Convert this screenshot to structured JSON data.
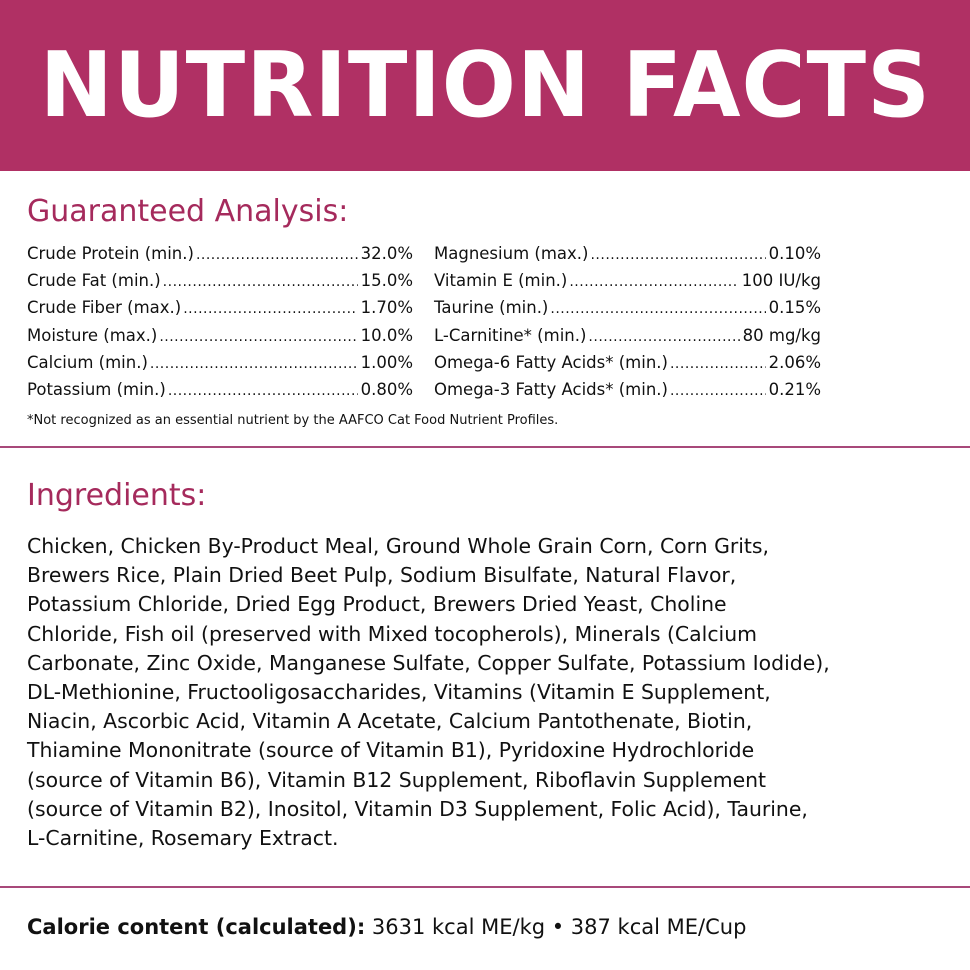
{
  "header": {
    "title": "NUTRITION FACTS"
  },
  "guaranteed_analysis": {
    "title": "Guaranteed Analysis:",
    "left": [
      {
        "name": "Crude Protein (min.)",
        "value": "32.0%"
      },
      {
        "name": "Crude Fat (min.)",
        "value": "15.0%"
      },
      {
        "name": "Crude Fiber (max.)",
        "value": "1.70%"
      },
      {
        "name": "Moisture (max.)",
        "value": "10.0%"
      },
      {
        "name": "Calcium (min.)",
        "value": "1.00%"
      },
      {
        "name": "Potassium (min.)",
        "value": "0.80%"
      }
    ],
    "right": [
      {
        "name": "Magnesium (max.)",
        "value": "0.10%"
      },
      {
        "name": "Vitamin E (min.)",
        "value": "100 IU/kg"
      },
      {
        "name": "Taurine (min.)",
        "value": "0.15%"
      },
      {
        "name": "L-Carnitine* (min.)",
        "value": "80 mg/kg"
      },
      {
        "name": "Omega-6 Fatty Acids* (min.)",
        "value": "2.06%"
      },
      {
        "name": "Omega-3 Fatty Acids* (min.)",
        "value": "0.21%"
      }
    ],
    "footnote": "*Not recognized as an essential nutrient by the AAFCO Cat Food Nutrient Profiles."
  },
  "ingredients": {
    "title": "Ingredients:",
    "lines": [
      "Chicken, Chicken By-Product Meal, Ground Whole Grain Corn, Corn Grits,",
      "Brewers Rice, Plain Dried Beet Pulp, Sodium Bisulfate, Natural Flavor,",
      "Potassium Chloride, Dried Egg Product, Brewers Dried Yeast, Choline",
      "Chloride, Fish oil (preserved with Mixed tocopherols), Minerals (Calcium",
      "Carbonate, Zinc Oxide, Manganese Sulfate, Copper Sulfate, Potassium Iodide),",
      "DL-Methionine, Fructooligosaccharides, Vitamins (Vitamin E Supplement,",
      "Niacin, Ascorbic Acid, Vitamin A Acetate, Calcium Pantothenate, Biotin,",
      "Thiamine Mononitrate (source of Vitamin B1), Pyridoxine Hydrochloride",
      "(source of Vitamin B6), Vitamin B12 Supplement, Riboflavin Supplement",
      "(source of Vitamin B2), Inositol, Vitamin D3 Supplement, Folic Acid), Taurine,",
      "L-Carnitine, Rosemary Extract."
    ]
  },
  "calorie": {
    "label": "Calorie content (calculated):",
    "value": "3631 kcal ME/kg • 387 kcal ME/Cup"
  },
  "colors": {
    "brand": "#b03064",
    "heading": "#a52a5c",
    "divider": "#a8497a"
  }
}
